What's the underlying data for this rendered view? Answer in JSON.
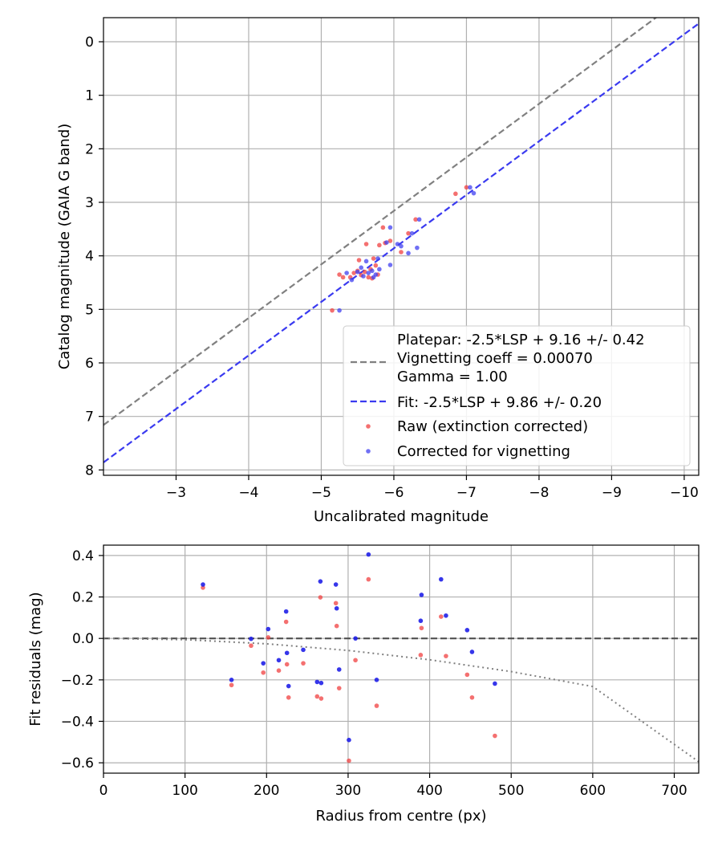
{
  "chart_data": [
    {
      "type": "scatter",
      "xlabel": "Uncalibrated magnitude",
      "ylabel": "Catalog magnitude (GAIA G band)",
      "xlim": [
        -2.0,
        -10.2
      ],
      "ylim": [
        8.1,
        -0.45
      ],
      "x_inverted": true,
      "y_inverted": true,
      "xticks": [
        -3,
        -4,
        -5,
        -6,
        -7,
        -8,
        -9,
        -10
      ],
      "xtick_labels": [
        "−3",
        "−4",
        "−5",
        "−6",
        "−7",
        "−8",
        "−9",
        "−10"
      ],
      "yticks": [
        0,
        1,
        2,
        3,
        4,
        5,
        6,
        7,
        8
      ],
      "ytick_labels": [
        "0",
        "1",
        "2",
        "3",
        "4",
        "5",
        "6",
        "7",
        "8"
      ],
      "grid": true,
      "legend_position": "bottom-right",
      "lines": [
        {
          "name": "Platepar",
          "label_lines": [
            "Platepar: -2.5*LSP + 9.16 +/- 0.42",
            "Vignetting coeff = 0.00070",
            "Gamma = 1.00"
          ],
          "slope": 1,
          "intercept": 9.16,
          "color": "#808080",
          "style": "dashed"
        },
        {
          "name": "Fit",
          "label_lines": [
            "Fit: -2.5*LSP + 9.86 +/- 0.20"
          ],
          "slope": 1,
          "intercept": 9.86,
          "color": "#3a3af0",
          "style": "dashed"
        }
      ],
      "series": [
        {
          "name": "Raw (extinction corrected)",
          "color": "#f04040",
          "points": [
            [
              -5.15,
              5.02
            ],
            [
              -5.25,
              4.35
            ],
            [
              -5.3,
              4.4
            ],
            [
              -5.4,
              4.4
            ],
            [
              -5.45,
              4.32
            ],
            [
              -5.5,
              4.28
            ],
            [
              -5.52,
              4.08
            ],
            [
              -5.55,
              4.36
            ],
            [
              -5.6,
              4.3
            ],
            [
              -5.62,
              3.78
            ],
            [
              -5.65,
              4.4
            ],
            [
              -5.68,
              4.25
            ],
            [
              -5.7,
              4.42
            ],
            [
              -5.72,
              4.05
            ],
            [
              -5.75,
              4.18
            ],
            [
              -5.78,
              4.35
            ],
            [
              -5.8,
              3.8
            ],
            [
              -5.85,
              3.47
            ],
            [
              -5.88,
              3.76
            ],
            [
              -5.95,
              3.72
            ],
            [
              -6.1,
              3.93
            ],
            [
              -6.2,
              3.58
            ],
            [
              -6.3,
              3.32
            ],
            [
              -6.85,
              2.84
            ],
            [
              -7.0,
              2.72
            ]
          ]
        },
        {
          "name": "Corrected for vignetting",
          "color": "#4040f0",
          "points": [
            [
              -5.25,
              5.02
            ],
            [
              -5.35,
              4.32
            ],
            [
              -5.42,
              4.45
            ],
            [
              -5.5,
              4.3
            ],
            [
              -5.55,
              4.22
            ],
            [
              -5.58,
              4.38
            ],
            [
              -5.62,
              4.1
            ],
            [
              -5.65,
              4.32
            ],
            [
              -5.7,
              4.28
            ],
            [
              -5.72,
              4.4
            ],
            [
              -5.75,
              4.35
            ],
            [
              -5.78,
              4.05
            ],
            [
              -5.8,
              4.25
            ],
            [
              -5.9,
              3.75
            ],
            [
              -5.95,
              3.47
            ],
            [
              -5.95,
              4.17
            ],
            [
              -6.05,
              3.78
            ],
            [
              -6.1,
              3.82
            ],
            [
              -6.2,
              3.95
            ],
            [
              -6.25,
              3.58
            ],
            [
              -6.32,
              3.85
            ],
            [
              -6.35,
              3.32
            ],
            [
              -7.05,
              2.72
            ],
            [
              -7.1,
              2.83
            ]
          ]
        }
      ]
    },
    {
      "type": "scatter",
      "xlabel": "Radius from centre (px)",
      "ylabel": "Fit residuals (mag)",
      "xlim": [
        0,
        730
      ],
      "ylim": [
        -0.65,
        0.45
      ],
      "xticks": [
        0,
        100,
        200,
        300,
        400,
        500,
        600,
        700
      ],
      "xtick_labels": [
        "0",
        "100",
        "200",
        "300",
        "400",
        "500",
        "600",
        "700"
      ],
      "yticks": [
        0.4,
        0.2,
        0.0,
        -0.2,
        -0.4,
        -0.6
      ],
      "ytick_labels": [
        "0.4",
        "0.2",
        "0.0",
        "−0.2",
        "−0.4",
        "−0.6"
      ],
      "grid": true,
      "reference_lines": [
        {
          "name": "zero",
          "y": 0,
          "color": "#505050",
          "style": "dashed"
        },
        {
          "name": "vignetting-curve",
          "color": "#808080",
          "style": "dotted",
          "x": [
            0,
            100,
            200,
            300,
            400,
            500,
            600,
            730
          ],
          "y": [
            0.0,
            -0.006,
            -0.026,
            -0.058,
            -0.103,
            -0.16,
            -0.232,
            -0.595
          ]
        }
      ],
      "series": [
        {
          "name": "Raw (extinction corrected)",
          "color": "#f04040",
          "points": [
            [
              122,
              0.245
            ],
            [
              157,
              -0.225
            ],
            [
              181,
              -0.035
            ],
            [
              196,
              -0.165
            ],
            [
              202,
              0.005
            ],
            [
              215,
              -0.155
            ],
            [
              224,
              0.08
            ],
            [
              225,
              -0.125
            ],
            [
              227,
              -0.285
            ],
            [
              245,
              -0.12
            ],
            [
              262,
              -0.28
            ],
            [
              266,
              0.198
            ],
            [
              267,
              -0.29
            ],
            [
              285,
              0.17
            ],
            [
              286,
              0.06
            ],
            [
              289,
              -0.24
            ],
            [
              301,
              -0.59
            ],
            [
              309,
              -0.105
            ],
            [
              325,
              0.285
            ],
            [
              335,
              -0.325
            ],
            [
              389,
              -0.08
            ],
            [
              390,
              0.05
            ],
            [
              414,
              0.105
            ],
            [
              420,
              -0.085
            ],
            [
              446,
              -0.175
            ],
            [
              452,
              -0.285
            ],
            [
              480,
              -0.47
            ]
          ]
        },
        {
          "name": "Corrected for vignetting",
          "color": "#2020e8",
          "points": [
            [
              122,
              0.26
            ],
            [
              157,
              -0.2
            ],
            [
              181,
              -0.002
            ],
            [
              196,
              -0.12
            ],
            [
              202,
              0.045
            ],
            [
              215,
              -0.105
            ],
            [
              224,
              0.13
            ],
            [
              225,
              -0.07
            ],
            [
              227,
              -0.23
            ],
            [
              245,
              -0.055
            ],
            [
              262,
              -0.21
            ],
            [
              266,
              0.275
            ],
            [
              267,
              -0.215
            ],
            [
              285,
              0.26
            ],
            [
              286,
              0.145
            ],
            [
              289,
              -0.15
            ],
            [
              301,
              -0.49
            ],
            [
              309,
              0.0
            ],
            [
              325,
              0.405
            ],
            [
              335,
              -0.2
            ],
            [
              389,
              0.085
            ],
            [
              390,
              0.21
            ],
            [
              414,
              0.285
            ],
            [
              420,
              0.11
            ],
            [
              446,
              0.04
            ],
            [
              452,
              -0.065
            ],
            [
              480,
              -0.218
            ]
          ]
        }
      ]
    }
  ]
}
